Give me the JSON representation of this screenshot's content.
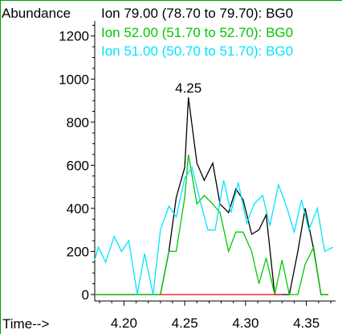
{
  "chart_data": {
    "type": "line",
    "ylabel": "Abundance",
    "xlabel": "Time-->",
    "xlim": [
      4.176,
      4.374
    ],
    "ylim": [
      -30,
      1270
    ],
    "xticks": [
      4.2,
      4.25,
      4.3,
      4.35
    ],
    "xtick_labels": [
      "4.20",
      "4.25",
      "4.30",
      "4.35"
    ],
    "yticks": [
      0,
      200,
      400,
      600,
      800,
      1000,
      1200
    ],
    "ytick_labels": [
      "0",
      "200",
      "400",
      "600",
      "800",
      "1000",
      "1200"
    ],
    "legend_position": "top",
    "legend": [
      "Ion  79.00 (78.70 to 79.70): BG0",
      "Ion  52.00 (51.70 to 52.70): BG0",
      "Ion  51.00 (50.70 to 51.70): BG0"
    ],
    "annotations": [
      {
        "text": "4.25",
        "x": 4.253,
        "y": 915
      }
    ],
    "series": [
      {
        "name": "Ion  79.00 (78.70 to 79.70): BG0",
        "color": "#000000",
        "x": [
          4.176,
          4.23,
          4.237,
          4.243,
          4.25,
          4.253,
          4.26,
          4.266,
          4.273,
          4.279,
          4.286,
          4.292,
          4.298,
          4.305,
          4.311,
          4.317,
          4.324,
          4.33,
          4.336,
          4.343,
          4.349,
          4.356,
          4.362,
          4.368
        ],
        "y": [
          0,
          0,
          200,
          450,
          590,
          915,
          610,
          530,
          610,
          420,
          380,
          490,
          440,
          280,
          300,
          370,
          0,
          0,
          0,
          200,
          400,
          210,
          0,
          0
        ]
      },
      {
        "name": "Ion  52.00 (51.70 to 52.70): BG0",
        "color": "#00c800",
        "x": [
          4.176,
          4.23,
          4.237,
          4.243,
          4.25,
          4.253,
          4.26,
          4.266,
          4.273,
          4.279,
          4.286,
          4.292,
          4.298,
          4.305,
          4.311,
          4.317,
          4.324,
          4.33,
          4.336,
          4.343,
          4.349,
          4.356,
          4.362,
          4.368
        ],
        "y": [
          0,
          0,
          200,
          200,
          450,
          650,
          420,
          460,
          420,
          380,
          200,
          290,
          290,
          200,
          50,
          170,
          0,
          160,
          0,
          0,
          140,
          220,
          0,
          0
        ]
      },
      {
        "name": "Ion  51.00 (50.70 to 51.70): BG0",
        "color": "#00e5ff",
        "x": [
          4.176,
          4.179,
          4.185,
          4.192,
          4.198,
          4.204,
          4.211,
          4.217,
          4.224,
          4.23,
          4.237,
          4.243,
          4.25,
          4.256,
          4.262,
          4.269,
          4.275,
          4.282,
          4.288,
          4.294,
          4.301,
          4.307,
          4.314,
          4.32,
          4.327,
          4.333,
          4.34,
          4.346,
          4.352,
          4.359,
          4.365,
          4.372
        ],
        "y": [
          160,
          220,
          150,
          270,
          200,
          250,
          0,
          190,
          0,
          300,
          410,
          360,
          540,
          590,
          450,
          300,
          300,
          530,
          380,
          520,
          330,
          420,
          460,
          320,
          510,
          420,
          290,
          440,
          300,
          400,
          200,
          220
        ]
      },
      {
        "name": "",
        "color": "#ff0000",
        "x": [
          4.23,
          4.33
        ],
        "y": [
          0,
          0
        ]
      }
    ]
  }
}
